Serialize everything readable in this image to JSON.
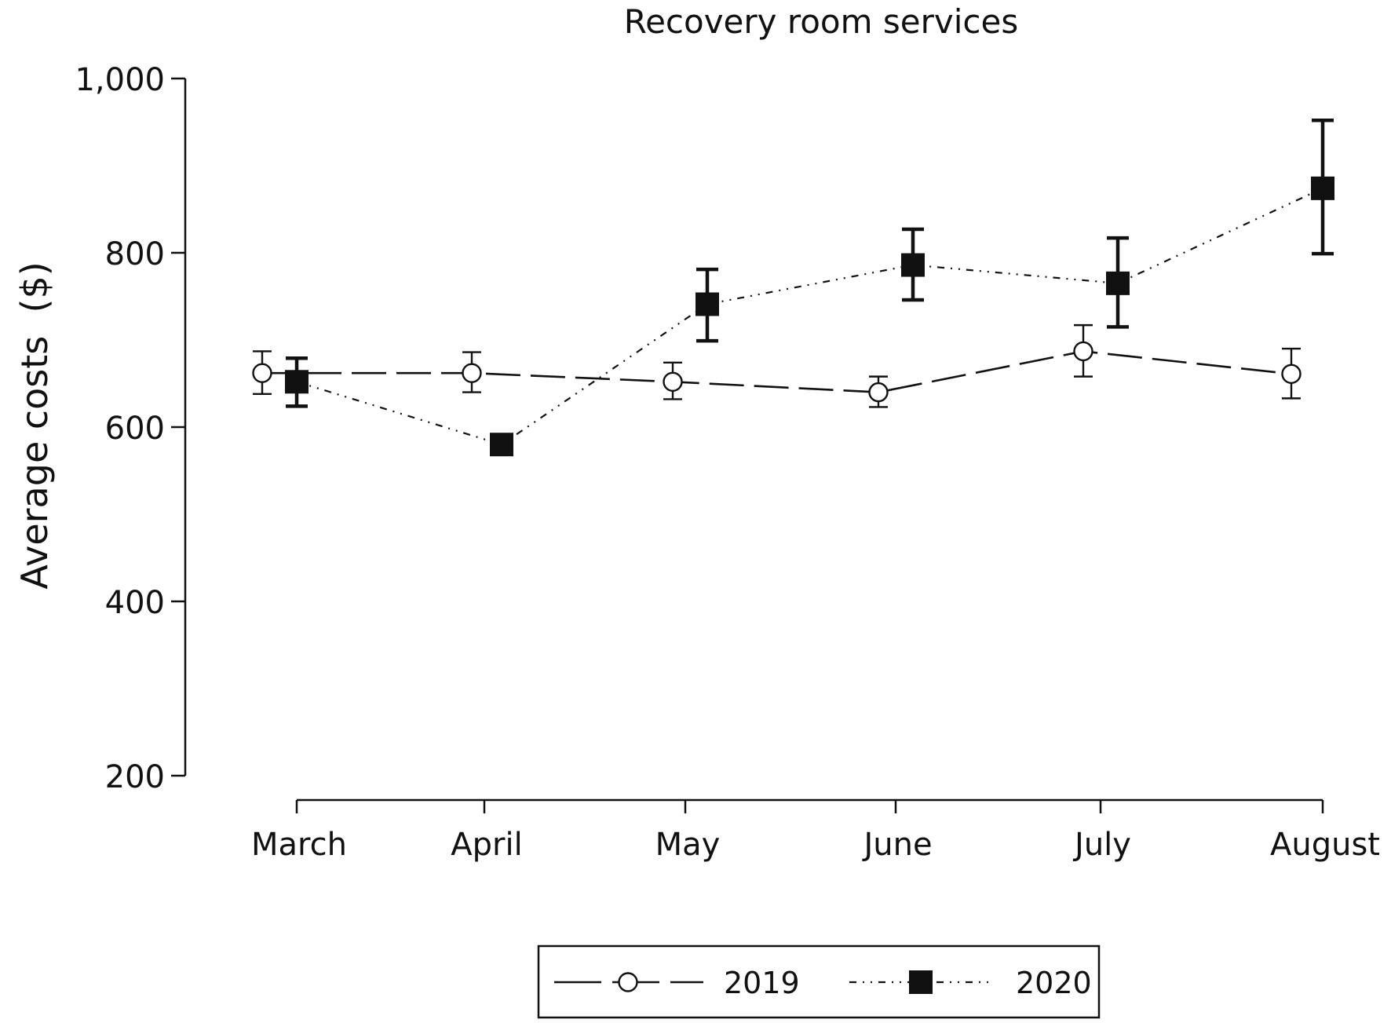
{
  "chart_data": {
    "type": "line",
    "title": "Recovery room services",
    "xlabel": "",
    "ylabel": "Average costs  ($)",
    "categories": [
      "March",
      "April",
      "May",
      "June",
      "July",
      "August"
    ],
    "yticks": [
      200,
      400,
      600,
      800,
      1000
    ],
    "ytick_labels": [
      "200",
      "400",
      "600",
      "800",
      "1,000"
    ],
    "ylim": [
      200,
      1000
    ],
    "grid": false,
    "legend_position": "bottom",
    "series": [
      {
        "name": "2019",
        "marker": "open-circle",
        "line_style": "long-dash",
        "values": [
          662,
          662,
          652,
          640,
          687,
          661
        ],
        "err_low": [
          638,
          640,
          632,
          623,
          658,
          633
        ],
        "err_high": [
          687,
          686,
          674,
          658,
          717,
          690
        ]
      },
      {
        "name": "2020",
        "marker": "filled-square",
        "line_style": "dash-dot-dot",
        "values": [
          652,
          580,
          741,
          786,
          765,
          874
        ],
        "err_low": [
          624,
          580,
          699,
          746,
          715,
          799
        ],
        "err_high": [
          679,
          580,
          781,
          827,
          817,
          952
        ]
      }
    ]
  }
}
